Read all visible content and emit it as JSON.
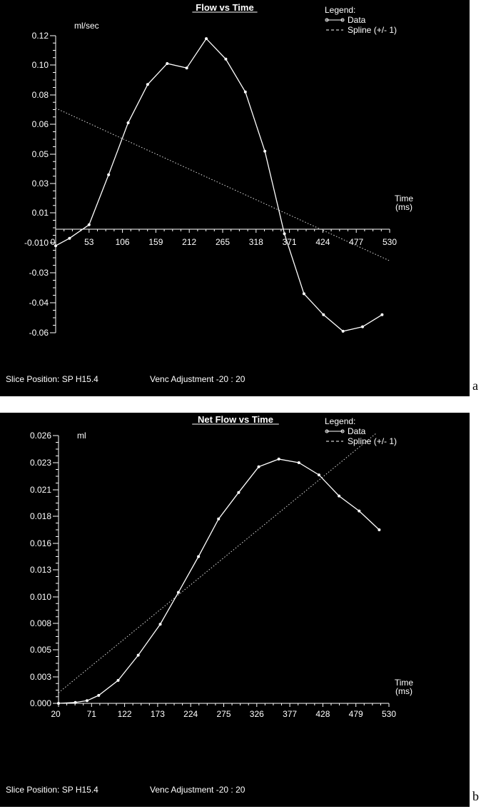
{
  "chart_data": [
    {
      "panel": "a",
      "type": "line",
      "title": "Flow vs Time",
      "ylabel": "ml/sec",
      "xlabel": "Time\n(ms)",
      "xlabel_lines": [
        "Time",
        "(ms)"
      ],
      "x_ticks": [
        "0",
        "53",
        "106",
        "159",
        "212",
        "265",
        "318",
        "371",
        "424",
        "477",
        "530"
      ],
      "y_ticks": [
        "0.12",
        "0.10",
        "0.08",
        "0.06",
        "0.05",
        "0.03",
        "0.01",
        "-0.010",
        "-0.03",
        "-0.04",
        "-0.06"
      ],
      "legend": {
        "heading": "Legend:",
        "data_label": "Data",
        "spline_label": "Spline (+/- 1)",
        "position": "top-right"
      },
      "footer_left": "Slice Position: SP  H15.4",
      "footer_right": "Venc Adjustment -20 : 20",
      "series": [
        {
          "name": "Data",
          "style": "line-markers",
          "x": [
            0,
            22,
            53,
            84,
            115,
            146,
            177,
            208,
            239,
            270,
            301,
            332,
            363,
            394,
            425,
            456,
            487,
            518
          ],
          "y": [
            -0.012,
            -0.007,
            0.002,
            0.036,
            0.061,
            0.087,
            0.101,
            0.098,
            0.118,
            0.104,
            0.082,
            0.051,
            -0.004,
            -0.037,
            -0.048,
            -0.059,
            -0.056,
            -0.048
          ]
        },
        {
          "name": "Spline (+/- 1)",
          "style": "dotted",
          "x": [
            0,
            530
          ],
          "y": [
            0.071,
            -0.022
          ]
        }
      ]
    },
    {
      "panel": "b",
      "type": "line",
      "title": "Net Flow vs Time",
      "ylabel": "ml",
      "xlabel": "Time\n(ms)",
      "xlabel_lines": [
        "Time",
        "(ms)"
      ],
      "x_ticks": [
        "20",
        "71",
        "122",
        "173",
        "224",
        "275",
        "326",
        "377",
        "428",
        "479",
        "530"
      ],
      "y_ticks": [
        "0.026",
        "0.023",
        "0.021",
        "0.018",
        "0.016",
        "0.013",
        "0.010",
        "0.008",
        "0.005",
        "0.003",
        "0.000"
      ],
      "legend": {
        "heading": "Legend:",
        "data_label": "Data",
        "spline_label": "Spline (+/- 1)",
        "position": "top-right"
      },
      "footer_left": "Slice Position: SP  H15.4",
      "footer_right": "Venc Adjustment -20 : 20",
      "series": [
        {
          "name": "Data",
          "style": "line-markers",
          "x": [
            20,
            46,
            64,
            82,
            112,
            143,
            177,
            205,
            236,
            267,
            298,
            329,
            360,
            391,
            422,
            453,
            484,
            515
          ],
          "y": [
            0.0,
            0.0001,
            0.0003,
            0.0009,
            0.0026,
            0.0046,
            0.0079,
            0.0105,
            0.0145,
            0.0178,
            0.0207,
            0.0227,
            0.0234,
            0.023,
            0.0221,
            0.0203,
            0.0186,
            0.017
          ]
        },
        {
          "name": "Spline (+/- 1)",
          "style": "dotted",
          "x": [
            20,
            510
          ],
          "y": [
            0.0012,
            0.0262
          ]
        }
      ]
    }
  ],
  "panel_tags": [
    "a",
    "b"
  ]
}
